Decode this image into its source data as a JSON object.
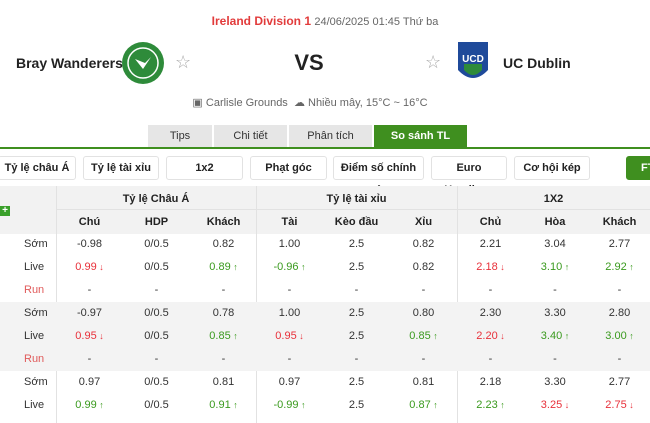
{
  "match": {
    "league": "Ireland Division 1",
    "datetime": "24/06/2025 01:45 Thứ ba",
    "home": "Bray Wanderers",
    "away": "UC Dublin",
    "vs": "VS",
    "venue": "Carlisle Grounds",
    "weather": "Nhiều mây, 15°C ~ 16°C"
  },
  "tabs": [
    "Tips",
    "Chi tiết",
    "Phân tích",
    "So sánh TL"
  ],
  "active_tab": "So sánh TL",
  "filters": [
    "Tỷ lệ châu Á",
    "Tỷ lệ tài xỉu",
    "1x2",
    "Phạt góc",
    "Điểm số chính xác",
    "Euro Handicap",
    "Cơ hội kép",
    "FT"
  ],
  "table": {
    "groups": [
      "Tỷ lệ Châu Á",
      "Tỷ lệ tài xỉu",
      "1X2"
    ],
    "columns": [
      "Chú",
      "HDP",
      "Khách",
      "Tài",
      "Kèo đầu",
      "Xỉu",
      "Chủ",
      "Hòa",
      "Khách"
    ],
    "rows": [
      {
        "label": "Sớm",
        "cells": [
          [
            "-0.98",
            ""
          ],
          [
            "0/0.5",
            ""
          ],
          [
            "0.82",
            ""
          ],
          [
            "1.00",
            ""
          ],
          [
            "2.5",
            ""
          ],
          [
            "0.82",
            ""
          ],
          [
            "2.21",
            ""
          ],
          [
            "3.04",
            ""
          ],
          [
            "2.77",
            ""
          ]
        ]
      },
      {
        "label": "Live",
        "cells": [
          [
            "0.99",
            "down"
          ],
          [
            "0/0.5",
            ""
          ],
          [
            "0.89",
            "up"
          ],
          [
            "-0.96",
            "up"
          ],
          [
            "2.5",
            ""
          ],
          [
            "0.82",
            ""
          ],
          [
            "2.18",
            "down"
          ],
          [
            "3.10",
            "up"
          ],
          [
            "2.92",
            "up"
          ]
        ]
      },
      {
        "label": "Run",
        "cells": [
          [
            "-",
            ""
          ],
          [
            "-",
            ""
          ],
          [
            "-",
            ""
          ],
          [
            "-",
            ""
          ],
          [
            "-",
            ""
          ],
          [
            "-",
            ""
          ],
          [
            "-",
            ""
          ],
          [
            "-",
            ""
          ],
          [
            "-",
            ""
          ]
        ]
      },
      {
        "label": "Sớm",
        "cells": [
          [
            "-0.97",
            ""
          ],
          [
            "0/0.5",
            ""
          ],
          [
            "0.78",
            ""
          ],
          [
            "1.00",
            ""
          ],
          [
            "2.5",
            ""
          ],
          [
            "0.80",
            ""
          ],
          [
            "2.30",
            ""
          ],
          [
            "3.30",
            ""
          ],
          [
            "2.80",
            ""
          ]
        ]
      },
      {
        "label": "Live",
        "cells": [
          [
            "0.95",
            "down"
          ],
          [
            "0/0.5",
            ""
          ],
          [
            "0.85",
            "up"
          ],
          [
            "0.95",
            "down"
          ],
          [
            "2.5",
            ""
          ],
          [
            "0.85",
            "up"
          ],
          [
            "2.20",
            "down"
          ],
          [
            "3.40",
            "up"
          ],
          [
            "3.00",
            "up"
          ]
        ]
      },
      {
        "label": "Run",
        "cells": [
          [
            "-",
            ""
          ],
          [
            "-",
            ""
          ],
          [
            "-",
            ""
          ],
          [
            "-",
            ""
          ],
          [
            "-",
            ""
          ],
          [
            "-",
            ""
          ],
          [
            "-",
            ""
          ],
          [
            "-",
            ""
          ],
          [
            "-",
            ""
          ]
        ]
      },
      {
        "label": "Sớm",
        "cells": [
          [
            "0.97",
            ""
          ],
          [
            "0/0.5",
            ""
          ],
          [
            "0.81",
            ""
          ],
          [
            "0.97",
            ""
          ],
          [
            "2.5",
            ""
          ],
          [
            "0.81",
            ""
          ],
          [
            "2.18",
            ""
          ],
          [
            "3.30",
            ""
          ],
          [
            "2.77",
            ""
          ]
        ]
      },
      {
        "label": "Live",
        "cells": [
          [
            "0.99",
            "up"
          ],
          [
            "0/0.5",
            ""
          ],
          [
            "0.91",
            "up"
          ],
          [
            "-0.99",
            "up"
          ],
          [
            "2.5",
            ""
          ],
          [
            "0.87",
            "up"
          ],
          [
            "2.23",
            "up"
          ],
          [
            "3.25",
            "down"
          ],
          [
            "2.75",
            "down"
          ]
        ]
      }
    ]
  },
  "colors": {
    "accent": "#3f8f1f",
    "up": "#3a9a1e",
    "down": "#e8303a",
    "league": "#e23b3b"
  }
}
